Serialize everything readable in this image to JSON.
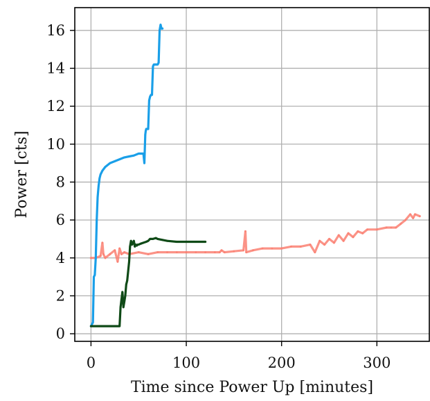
{
  "chart_data": {
    "type": "line",
    "title": "",
    "xlabel": "Time since Power Up [minutes]",
    "ylabel": "Power [cts]",
    "xlim": [
      -17,
      355
    ],
    "ylim": [
      -0.4,
      17.2
    ],
    "grid": true,
    "xticks": [
      0,
      100,
      200,
      300
    ],
    "xtick_labels": [
      "0",
      "100",
      "200",
      "300"
    ],
    "yticks": [
      0,
      2,
      4,
      6,
      8,
      10,
      12,
      14,
      16
    ],
    "ytick_labels": [
      "0",
      "2",
      "4",
      "6",
      "8",
      "10",
      "12",
      "14",
      "16"
    ],
    "series": [
      {
        "color": "#fa8072",
        "opacity": 0.85,
        "width": 3.2,
        "x": [
          0,
          5,
          10,
          12,
          13,
          15,
          20,
          25,
          28,
          30,
          32,
          35,
          40,
          50,
          60,
          70,
          80,
          90,
          100,
          110,
          120,
          130,
          135,
          137,
          140,
          150,
          160,
          162,
          163,
          170,
          180,
          190,
          200,
          210,
          220,
          230,
          235,
          240,
          245,
          250,
          255,
          260,
          265,
          270,
          275,
          280,
          285,
          290,
          300,
          310,
          315,
          320,
          325,
          330,
          335,
          338,
          340,
          345
        ],
        "y": [
          4.0,
          4.0,
          4.1,
          4.8,
          4.2,
          4.0,
          4.2,
          4.4,
          3.8,
          4.5,
          4.2,
          4.3,
          4.2,
          4.3,
          4.2,
          4.3,
          4.3,
          4.3,
          4.3,
          4.3,
          4.3,
          4.3,
          4.3,
          4.4,
          4.3,
          4.35,
          4.4,
          5.4,
          4.3,
          4.4,
          4.5,
          4.5,
          4.5,
          4.6,
          4.6,
          4.7,
          4.3,
          4.9,
          4.7,
          5.0,
          4.8,
          5.2,
          4.9,
          5.3,
          5.1,
          5.4,
          5.3,
          5.5,
          5.5,
          5.6,
          5.6,
          5.6,
          5.8,
          6.0,
          6.3,
          6.1,
          6.3,
          6.2
        ]
      },
      {
        "color": "#1a9fe8",
        "opacity": 1,
        "width": 3.2,
        "x": [
          0,
          2,
          3,
          4,
          5,
          6,
          7,
          8,
          9,
          10,
          12,
          15,
          20,
          25,
          30,
          35,
          40,
          45,
          50,
          55,
          56,
          57,
          57.5,
          58,
          60,
          61,
          62,
          63,
          64,
          65,
          66,
          67,
          68,
          69,
          70,
          71,
          72,
          73,
          74,
          75
        ],
        "y": [
          0.4,
          0.6,
          3.0,
          3.1,
          4.0,
          6.0,
          7.2,
          7.8,
          8.2,
          8.4,
          8.6,
          8.8,
          9.0,
          9.1,
          9.2,
          9.3,
          9.35,
          9.4,
          9.5,
          9.5,
          9.0,
          10.5,
          10.7,
          10.8,
          10.8,
          12.3,
          12.5,
          12.6,
          12.6,
          14.1,
          14.2,
          14.2,
          14.2,
          14.2,
          14.2,
          14.3,
          16.0,
          16.3,
          16.1,
          16.1
        ]
      },
      {
        "color": "#0f4a17",
        "opacity": 1,
        "width": 3.2,
        "x": [
          0,
          10,
          20,
          30,
          31,
          32,
          33,
          34,
          35,
          36,
          37,
          38,
          40,
          41,
          42,
          43,
          44,
          45,
          46,
          47,
          48,
          49,
          50,
          52,
          55,
          58,
          60,
          62,
          65,
          68,
          70,
          75,
          80,
          90,
          100,
          110,
          120
        ],
        "y": [
          0.4,
          0.4,
          0.4,
          0.4,
          1.4,
          1.8,
          2.2,
          1.4,
          1.7,
          2.0,
          2.6,
          2.8,
          3.8,
          4.6,
          4.9,
          4.7,
          4.8,
          4.9,
          4.6,
          4.7,
          4.65,
          4.7,
          4.7,
          4.75,
          4.8,
          4.85,
          4.9,
          5.0,
          5.0,
          5.05,
          5.0,
          4.95,
          4.9,
          4.85,
          4.85,
          4.85,
          4.85
        ]
      }
    ]
  }
}
